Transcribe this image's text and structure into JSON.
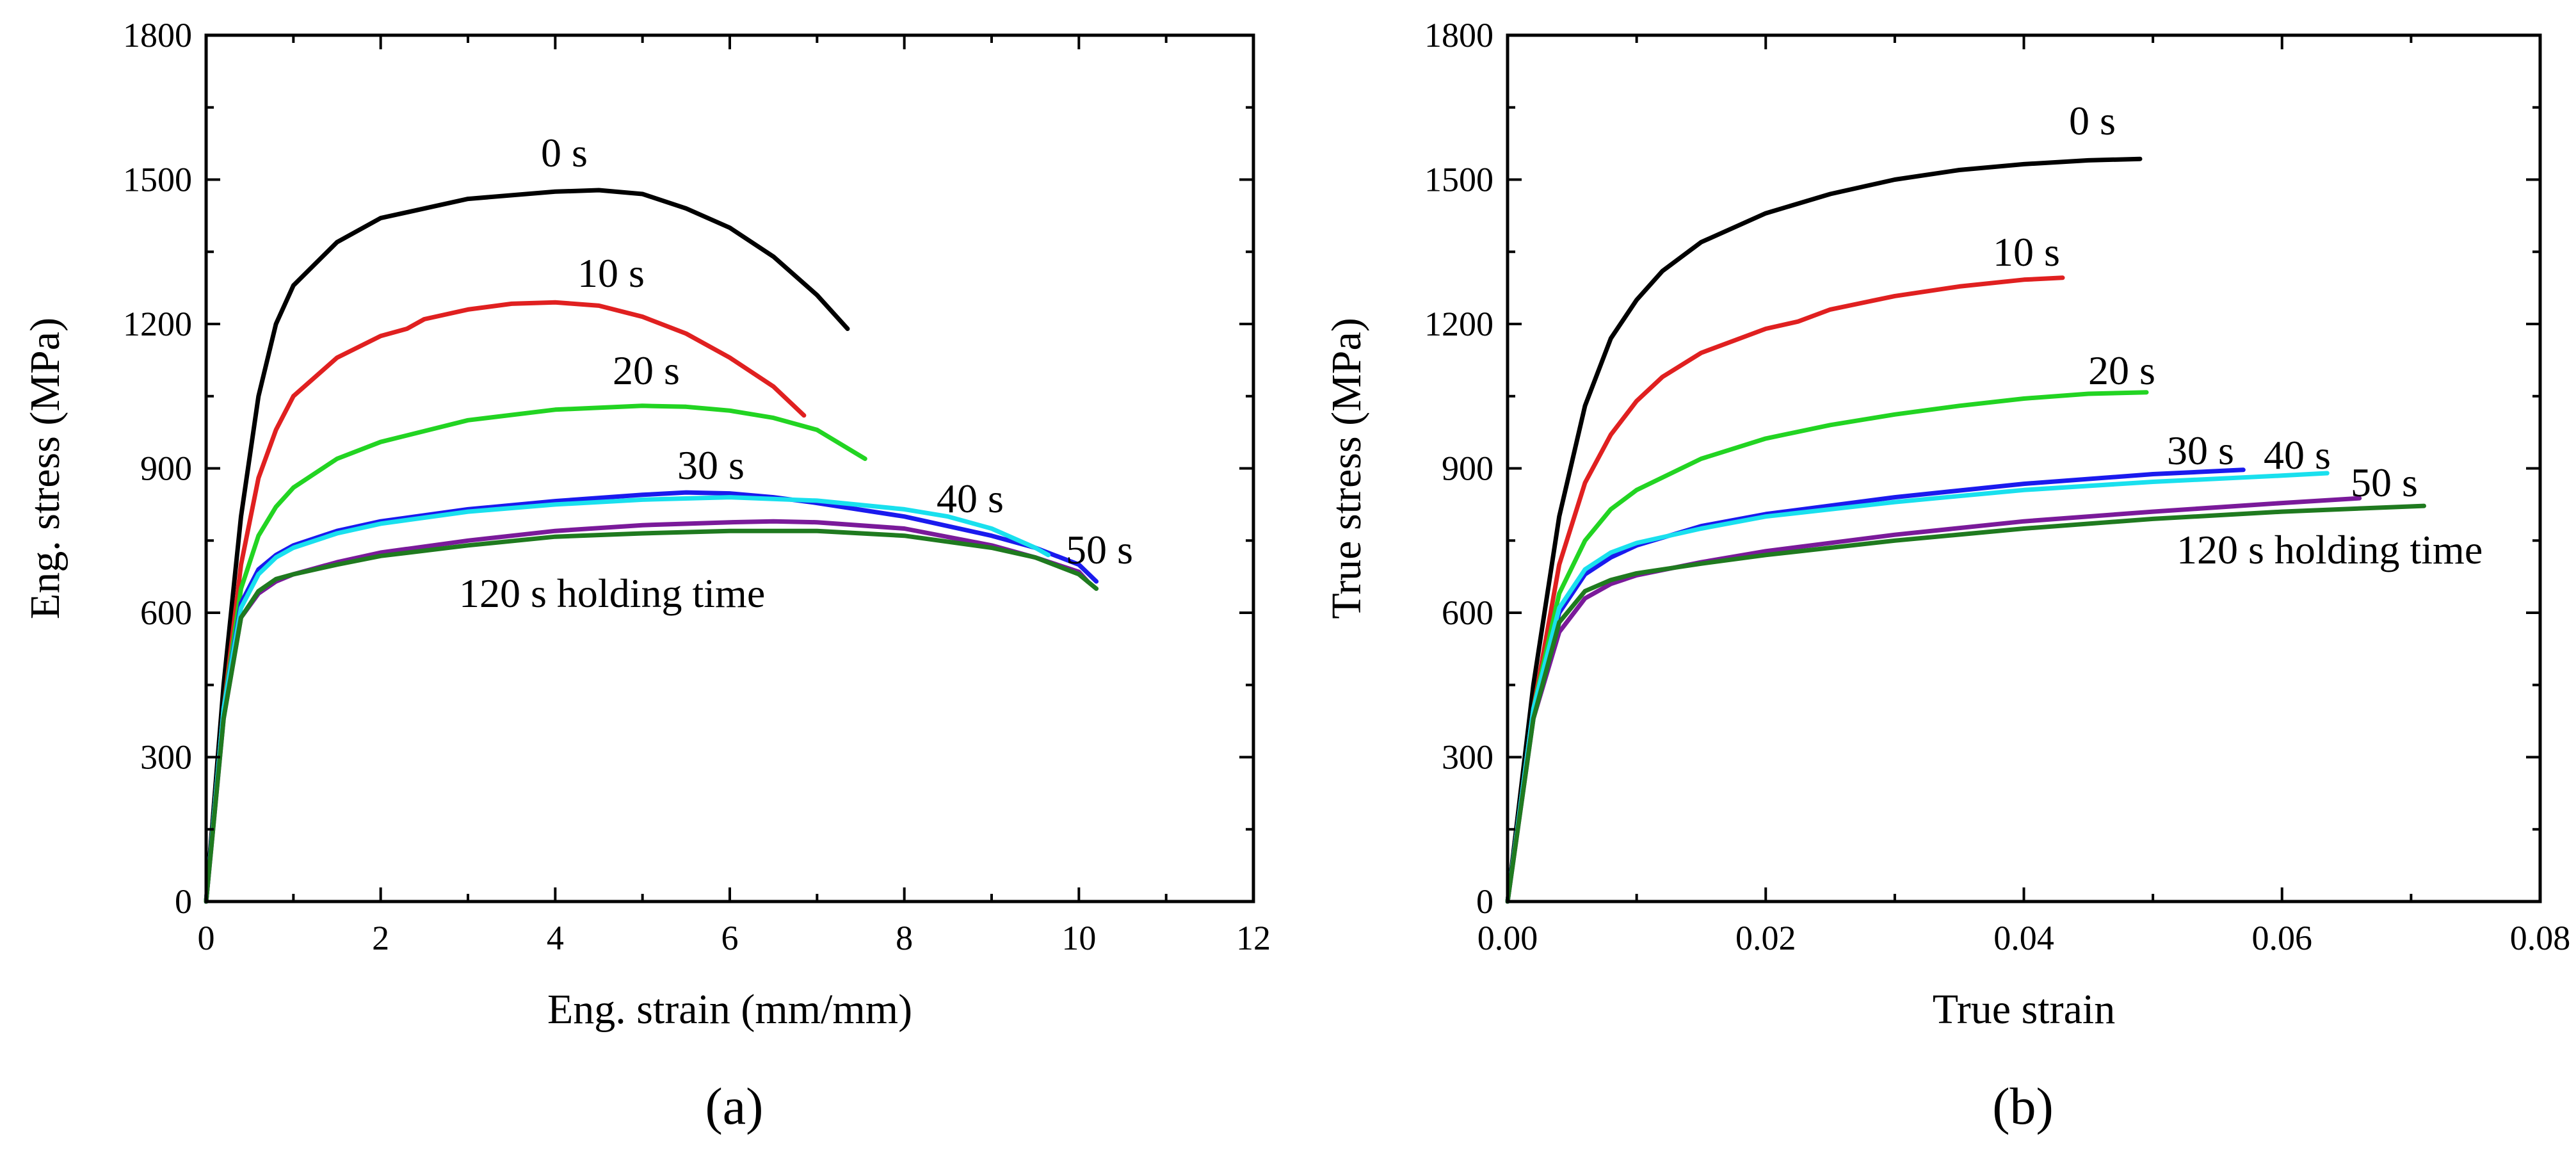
{
  "chart_data": [
    {
      "type": "line",
      "panel_label": "(a)",
      "xlabel": "Eng. strain (mm/mm)",
      "ylabel": "Eng. stress (MPa)",
      "xlim": [
        0,
        12
      ],
      "ylim": [
        0,
        1800
      ],
      "xticks": [
        "0",
        "2",
        "4",
        "6",
        "8",
        "10",
        "12"
      ],
      "yticks": [
        "0",
        "300",
        "600",
        "900",
        "1200",
        "1500",
        "1800"
      ],
      "series": [
        {
          "name": "0 s",
          "color": "#000000",
          "label": "0 s",
          "points": [
            [
              0,
              0
            ],
            [
              0.2,
              450
            ],
            [
              0.4,
              800
            ],
            [
              0.6,
              1050
            ],
            [
              0.8,
              1200
            ],
            [
              1.0,
              1280
            ],
            [
              1.5,
              1370
            ],
            [
              2,
              1420
            ],
            [
              3,
              1460
            ],
            [
              4,
              1475
            ],
            [
              4.5,
              1478
            ],
            [
              5,
              1470
            ],
            [
              5.5,
              1440
            ],
            [
              6,
              1400
            ],
            [
              6.5,
              1340
            ],
            [
              7,
              1260
            ],
            [
              7.35,
              1190
            ]
          ]
        },
        {
          "name": "10 s",
          "color": "#e02020",
          "label": "10 s",
          "points": [
            [
              0,
              0
            ],
            [
              0.2,
              400
            ],
            [
              0.4,
              700
            ],
            [
              0.6,
              880
            ],
            [
              0.8,
              980
            ],
            [
              1.0,
              1050
            ],
            [
              1.5,
              1130
            ],
            [
              2,
              1175
            ],
            [
              2.3,
              1190
            ],
            [
              2.5,
              1210
            ],
            [
              3,
              1230
            ],
            [
              3.5,
              1242
            ],
            [
              4,
              1245
            ],
            [
              4.5,
              1238
            ],
            [
              5,
              1215
            ],
            [
              5.5,
              1180
            ],
            [
              6,
              1130
            ],
            [
              6.5,
              1070
            ],
            [
              6.85,
              1010
            ]
          ]
        },
        {
          "name": "20 s",
          "color": "#22d422",
          "label": "20 s",
          "points": [
            [
              0,
              0
            ],
            [
              0.2,
              400
            ],
            [
              0.4,
              650
            ],
            [
              0.6,
              760
            ],
            [
              0.8,
              820
            ],
            [
              1.0,
              860
            ],
            [
              1.5,
              920
            ],
            [
              2,
              955
            ],
            [
              3,
              1000
            ],
            [
              4,
              1022
            ],
            [
              5,
              1030
            ],
            [
              5.5,
              1028
            ],
            [
              6,
              1020
            ],
            [
              6.5,
              1005
            ],
            [
              7,
              980
            ],
            [
              7.55,
              920
            ]
          ]
        },
        {
          "name": "30 s",
          "color": "#1a1aee",
          "label": "30 s",
          "points": [
            [
              0,
              0
            ],
            [
              0.2,
              400
            ],
            [
              0.4,
              620
            ],
            [
              0.6,
              690
            ],
            [
              0.8,
              720
            ],
            [
              1.0,
              740
            ],
            [
              1.5,
              770
            ],
            [
              2,
              790
            ],
            [
              3,
              815
            ],
            [
              4,
              832
            ],
            [
              5,
              845
            ],
            [
              5.5,
              850
            ],
            [
              6,
              848
            ],
            [
              6.5,
              840
            ],
            [
              7,
              828
            ],
            [
              8,
              800
            ],
            [
              9,
              760
            ],
            [
              9.5,
              735
            ],
            [
              10,
              700
            ],
            [
              10.2,
              665
            ]
          ]
        },
        {
          "name": "40 s",
          "color": "#19e0ee",
          "label": "40 s",
          "points": [
            [
              0,
              0
            ],
            [
              0.2,
              400
            ],
            [
              0.4,
              610
            ],
            [
              0.6,
              680
            ],
            [
              0.8,
              715
            ],
            [
              1.0,
              735
            ],
            [
              1.5,
              765
            ],
            [
              2,
              785
            ],
            [
              3,
              810
            ],
            [
              4,
              825
            ],
            [
              5,
              835
            ],
            [
              6,
              840
            ],
            [
              7,
              833
            ],
            [
              8,
              815
            ],
            [
              8.5,
              800
            ],
            [
              9,
              775
            ],
            [
              9.5,
              735
            ],
            [
              9.65,
              720
            ]
          ]
        },
        {
          "name": "50 s",
          "color": "#7a1a9a",
          "label": "50 s",
          "points": [
            [
              0,
              0
            ],
            [
              0.2,
              380
            ],
            [
              0.4,
              590
            ],
            [
              0.6,
              640
            ],
            [
              0.8,
              665
            ],
            [
              1.0,
              680
            ],
            [
              1.5,
              705
            ],
            [
              2,
              725
            ],
            [
              3,
              750
            ],
            [
              4,
              770
            ],
            [
              5,
              782
            ],
            [
              6,
              788
            ],
            [
              6.5,
              790
            ],
            [
              7,
              788
            ],
            [
              8,
              775
            ],
            [
              9,
              740
            ],
            [
              9.5,
              715
            ],
            [
              10,
              685
            ],
            [
              10.1,
              665
            ]
          ]
        },
        {
          "name": "120 s holding time",
          "color": "#1f7a1f",
          "label": "120 s holding time",
          "points": [
            [
              0,
              0
            ],
            [
              0.2,
              380
            ],
            [
              0.4,
              590
            ],
            [
              0.6,
              645
            ],
            [
              0.8,
              670
            ],
            [
              1.0,
              680
            ],
            [
              1.5,
              700
            ],
            [
              2,
              718
            ],
            [
              3,
              740
            ],
            [
              4,
              758
            ],
            [
              5,
              765
            ],
            [
              6,
              770
            ],
            [
              7,
              770
            ],
            [
              8,
              760
            ],
            [
              9,
              735
            ],
            [
              9.5,
              715
            ],
            [
              10,
              680
            ],
            [
              10.2,
              650
            ]
          ]
        }
      ]
    },
    {
      "type": "line",
      "panel_label": "(b)",
      "xlabel": "True strain",
      "ylabel": "True stress (MPa)",
      "xlim": [
        0,
        0.08
      ],
      "ylim": [
        0,
        1800
      ],
      "xticks": [
        "0.00",
        "0.02",
        "0.04",
        "0.06",
        "0.08"
      ],
      "yticks": [
        "0",
        "300",
        "600",
        "900",
        "1200",
        "1500",
        "1800"
      ],
      "series": [
        {
          "name": "0 s",
          "color": "#000000",
          "label": "0 s",
          "points": [
            [
              0,
              0
            ],
            [
              0.002,
              450
            ],
            [
              0.004,
              800
            ],
            [
              0.006,
              1030
            ],
            [
              0.008,
              1170
            ],
            [
              0.01,
              1250
            ],
            [
              0.012,
              1310
            ],
            [
              0.015,
              1370
            ],
            [
              0.02,
              1430
            ],
            [
              0.025,
              1470
            ],
            [
              0.03,
              1500
            ],
            [
              0.035,
              1520
            ],
            [
              0.04,
              1532
            ],
            [
              0.045,
              1540
            ],
            [
              0.049,
              1543
            ]
          ]
        },
        {
          "name": "10 s",
          "color": "#e02020",
          "label": "10 s",
          "points": [
            [
              0,
              0
            ],
            [
              0.002,
              400
            ],
            [
              0.004,
              700
            ],
            [
              0.006,
              870
            ],
            [
              0.008,
              970
            ],
            [
              0.01,
              1040
            ],
            [
              0.012,
              1090
            ],
            [
              0.015,
              1140
            ],
            [
              0.02,
              1190
            ],
            [
              0.0225,
              1205
            ],
            [
              0.025,
              1230
            ],
            [
              0.03,
              1258
            ],
            [
              0.035,
              1278
            ],
            [
              0.04,
              1292
            ],
            [
              0.043,
              1296
            ]
          ]
        },
        {
          "name": "20 s",
          "color": "#22d422",
          "label": "20 s",
          "points": [
            [
              0,
              0
            ],
            [
              0.002,
              400
            ],
            [
              0.004,
              640
            ],
            [
              0.006,
              750
            ],
            [
              0.008,
              815
            ],
            [
              0.01,
              855
            ],
            [
              0.015,
              920
            ],
            [
              0.02,
              962
            ],
            [
              0.025,
              990
            ],
            [
              0.03,
              1012
            ],
            [
              0.035,
              1030
            ],
            [
              0.04,
              1045
            ],
            [
              0.045,
              1055
            ],
            [
              0.0495,
              1058
            ]
          ]
        },
        {
          "name": "30 s",
          "color": "#1a1aee",
          "label": "30 s",
          "points": [
            [
              0,
              0
            ],
            [
              0.002,
              400
            ],
            [
              0.004,
              600
            ],
            [
              0.006,
              680
            ],
            [
              0.008,
              715
            ],
            [
              0.01,
              740
            ],
            [
              0.015,
              780
            ],
            [
              0.02,
              805
            ],
            [
              0.03,
              840
            ],
            [
              0.04,
              868
            ],
            [
              0.05,
              888
            ],
            [
              0.057,
              897
            ]
          ]
        },
        {
          "name": "40 s",
          "color": "#19e0ee",
          "label": "40 s",
          "points": [
            [
              0,
              0
            ],
            [
              0.002,
              400
            ],
            [
              0.004,
              610
            ],
            [
              0.006,
              690
            ],
            [
              0.008,
              725
            ],
            [
              0.01,
              745
            ],
            [
              0.015,
              775
            ],
            [
              0.02,
              800
            ],
            [
              0.03,
              830
            ],
            [
              0.04,
              855
            ],
            [
              0.05,
              872
            ],
            [
              0.06,
              885
            ],
            [
              0.0635,
              890
            ]
          ]
        },
        {
          "name": "50 s",
          "color": "#7a1a9a",
          "label": "50 s",
          "points": [
            [
              0,
              0
            ],
            [
              0.002,
              380
            ],
            [
              0.004,
              560
            ],
            [
              0.006,
              630
            ],
            [
              0.008,
              660
            ],
            [
              0.01,
              678
            ],
            [
              0.015,
              705
            ],
            [
              0.02,
              728
            ],
            [
              0.03,
              762
            ],
            [
              0.04,
              790
            ],
            [
              0.05,
              810
            ],
            [
              0.06,
              828
            ],
            [
              0.066,
              838
            ]
          ]
        },
        {
          "name": "120 s holding time",
          "color": "#1f7a1f",
          "label": "120 s holding time",
          "points": [
            [
              0,
              0
            ],
            [
              0.002,
              380
            ],
            [
              0.004,
              580
            ],
            [
              0.006,
              645
            ],
            [
              0.008,
              668
            ],
            [
              0.01,
              682
            ],
            [
              0.015,
              702
            ],
            [
              0.02,
              720
            ],
            [
              0.03,
              750
            ],
            [
              0.04,
              775
            ],
            [
              0.05,
              795
            ],
            [
              0.06,
              810
            ],
            [
              0.071,
              822
            ]
          ]
        }
      ]
    }
  ]
}
